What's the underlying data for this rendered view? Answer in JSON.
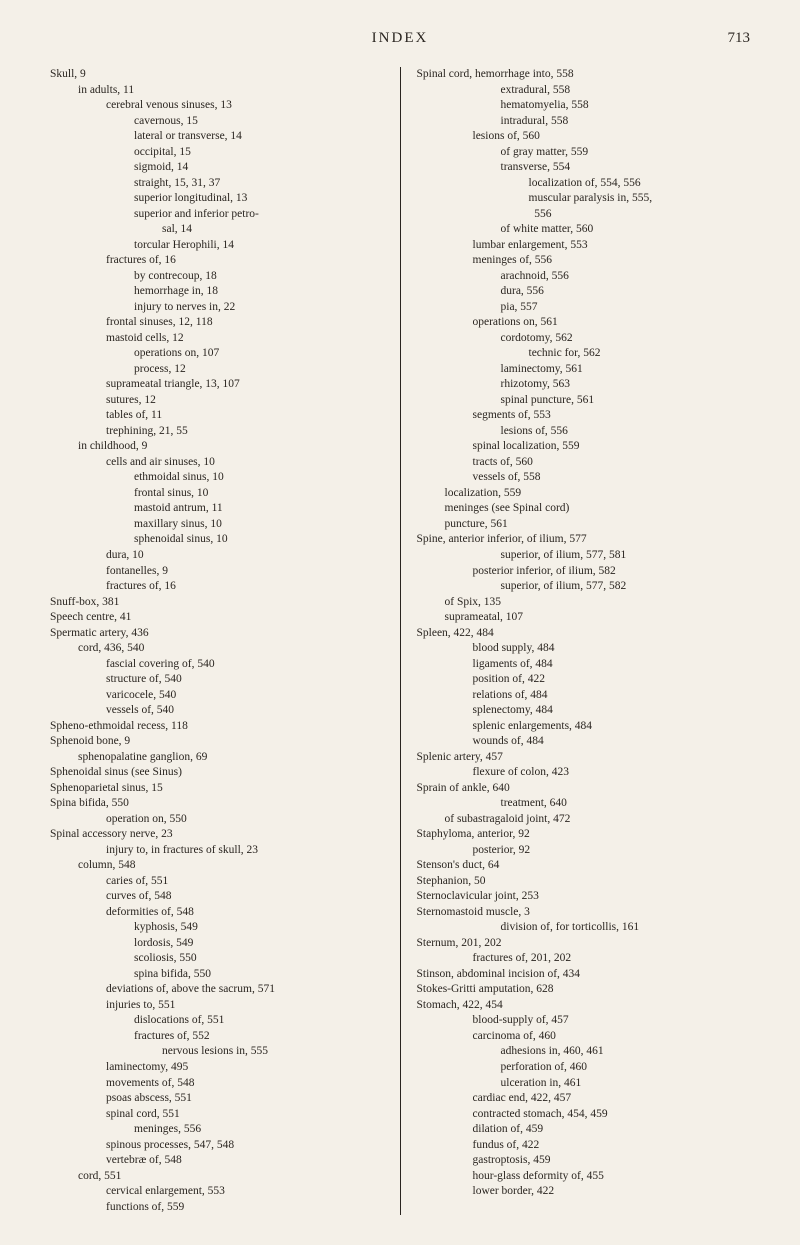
{
  "header": {
    "title": "INDEX",
    "page": "713"
  },
  "left_column": [
    {
      "i": 0,
      "t": "Skull, 9"
    },
    {
      "i": 1,
      "t": "in adults, 11"
    },
    {
      "i": 2,
      "t": "cerebral venous sinuses, 13"
    },
    {
      "i": 3,
      "t": "cavernous, 15"
    },
    {
      "i": 3,
      "t": "lateral or transverse, 14"
    },
    {
      "i": 3,
      "t": "occipital, 15"
    },
    {
      "i": 3,
      "t": "sigmoid, 14"
    },
    {
      "i": 3,
      "t": "straight, 15, 31, 37"
    },
    {
      "i": 3,
      "t": "superior longitudinal, 13"
    },
    {
      "i": 3,
      "t": "superior and inferior petro-"
    },
    {
      "i": 4,
      "t": "sal, 14"
    },
    {
      "i": 3,
      "t": "torcular Herophili, 14"
    },
    {
      "i": 2,
      "t": "fractures of, 16"
    },
    {
      "i": 3,
      "t": "by contrecoup, 18"
    },
    {
      "i": 3,
      "t": "hemorrhage in, 18"
    },
    {
      "i": 3,
      "t": "injury to nerves in, 22"
    },
    {
      "i": 2,
      "t": "frontal sinuses, 12, 118"
    },
    {
      "i": 2,
      "t": "mastoid cells, 12"
    },
    {
      "i": 3,
      "t": "operations on, 107"
    },
    {
      "i": 3,
      "t": "process, 12"
    },
    {
      "i": 2,
      "t": "suprameatal triangle, 13, 107"
    },
    {
      "i": 2,
      "t": "sutures, 12"
    },
    {
      "i": 2,
      "t": "tables of, 11"
    },
    {
      "i": 2,
      "t": "trephining, 21, 55"
    },
    {
      "i": 1,
      "t": "in childhood, 9"
    },
    {
      "i": 2,
      "t": "cells and air sinuses, 10"
    },
    {
      "i": 3,
      "t": "ethmoidal sinus, 10"
    },
    {
      "i": 3,
      "t": "frontal sinus, 10"
    },
    {
      "i": 3,
      "t": "mastoid antrum, 11"
    },
    {
      "i": 3,
      "t": "maxillary sinus, 10"
    },
    {
      "i": 3,
      "t": "sphenoidal sinus, 10"
    },
    {
      "i": 2,
      "t": "dura, 10"
    },
    {
      "i": 2,
      "t": "fontanelles, 9"
    },
    {
      "i": 2,
      "t": "fractures of, 16"
    },
    {
      "i": 0,
      "t": "Snuff-box, 381"
    },
    {
      "i": 0,
      "t": "Speech centre, 41"
    },
    {
      "i": 0,
      "t": "Spermatic artery, 436"
    },
    {
      "i": 1,
      "t": "cord, 436, 540"
    },
    {
      "i": 2,
      "t": "fascial covering of, 540"
    },
    {
      "i": 2,
      "t": "structure of, 540"
    },
    {
      "i": 2,
      "t": "varicocele, 540"
    },
    {
      "i": 2,
      "t": "vessels of, 540"
    },
    {
      "i": 0,
      "t": "Spheno-ethmoidal recess, 118"
    },
    {
      "i": 0,
      "t": "Sphenoid bone, 9"
    },
    {
      "i": 1,
      "t": "sphenopalatine ganglion, 69"
    },
    {
      "i": 0,
      "t": "Sphenoidal sinus (see Sinus)"
    },
    {
      "i": 0,
      "t": "Sphenoparietal sinus, 15"
    },
    {
      "i": 0,
      "t": "Spina bifida, 550"
    },
    {
      "i": 2,
      "t": "operation on, 550"
    },
    {
      "i": 0,
      "t": "Spinal accessory nerve, 23"
    },
    {
      "i": 2,
      "t": "injury to, in fractures of skull, 23"
    },
    {
      "i": 1,
      "t": "column, 548"
    },
    {
      "i": 2,
      "t": "caries of, 551"
    },
    {
      "i": 2,
      "t": "curves of, 548"
    },
    {
      "i": 2,
      "t": "deformities of, 548"
    },
    {
      "i": 3,
      "t": "kyphosis, 549"
    },
    {
      "i": 3,
      "t": "lordosis, 549"
    },
    {
      "i": 3,
      "t": "scoliosis, 550"
    },
    {
      "i": 3,
      "t": "spina bifida, 550"
    },
    {
      "i": 2,
      "t": "deviations of, above the sacrum, 571"
    },
    {
      "i": 2,
      "t": "injuries to, 551"
    },
    {
      "i": 3,
      "t": "dislocations of, 551"
    },
    {
      "i": 3,
      "t": "fractures of, 552"
    },
    {
      "i": 4,
      "t": "nervous lesions in, 555"
    },
    {
      "i": 2,
      "t": "laminectomy, 495"
    },
    {
      "i": 2,
      "t": "movements of, 548"
    },
    {
      "i": 2,
      "t": "psoas abscess, 551"
    },
    {
      "i": 2,
      "t": "spinal cord, 551"
    },
    {
      "i": 3,
      "t": "meninges, 556"
    },
    {
      "i": 2,
      "t": "spinous processes, 547, 548"
    },
    {
      "i": 2,
      "t": "vertebræ of, 548"
    },
    {
      "i": 1,
      "t": "cord, 551"
    },
    {
      "i": 2,
      "t": "cervical enlargement, 553"
    },
    {
      "i": 2,
      "t": "functions of, 559"
    }
  ],
  "right_column": [
    {
      "i": 0,
      "t": "Spinal cord, hemorrhage into, 558"
    },
    {
      "i": 3,
      "t": "extradural, 558"
    },
    {
      "i": 3,
      "t": "hematomyelia, 558"
    },
    {
      "i": 3,
      "t": "intradural, 558"
    },
    {
      "i": 2,
      "t": "lesions of, 560"
    },
    {
      "i": 3,
      "t": "of gray matter, 559"
    },
    {
      "i": 3,
      "t": "transverse, 554"
    },
    {
      "i": 4,
      "t": "localization of, 554, 556"
    },
    {
      "i": 4,
      "t": "muscular paralysis in, 555,"
    },
    {
      "i": 4,
      "t": "  556"
    },
    {
      "i": 3,
      "t": "of white matter, 560"
    },
    {
      "i": 2,
      "t": "lumbar enlargement, 553"
    },
    {
      "i": 2,
      "t": "meninges of, 556"
    },
    {
      "i": 3,
      "t": "arachnoid, 556"
    },
    {
      "i": 3,
      "t": "dura, 556"
    },
    {
      "i": 3,
      "t": "pia, 557"
    },
    {
      "i": 2,
      "t": "operations on, 561"
    },
    {
      "i": 3,
      "t": "cordotomy, 562"
    },
    {
      "i": 4,
      "t": "technic for, 562"
    },
    {
      "i": 3,
      "t": "laminectomy, 561"
    },
    {
      "i": 3,
      "t": "rhizotomy, 563"
    },
    {
      "i": 3,
      "t": "spinal puncture, 561"
    },
    {
      "i": 2,
      "t": "segments of, 553"
    },
    {
      "i": 3,
      "t": "lesions of, 556"
    },
    {
      "i": 2,
      "t": "spinal localization, 559"
    },
    {
      "i": 2,
      "t": "tracts of, 560"
    },
    {
      "i": 2,
      "t": "vessels of, 558"
    },
    {
      "i": 1,
      "t": "localization, 559"
    },
    {
      "i": 1,
      "t": "meninges (see Spinal cord)"
    },
    {
      "i": 1,
      "t": "puncture, 561"
    },
    {
      "i": 0,
      "t": "Spine, anterior inferior, of ilium, 577"
    },
    {
      "i": 3,
      "t": "superior, of ilium, 577, 581"
    },
    {
      "i": 2,
      "t": "posterior inferior, of ilium, 582"
    },
    {
      "i": 3,
      "t": "superior, of ilium, 577, 582"
    },
    {
      "i": 1,
      "t": "of Spix, 135"
    },
    {
      "i": 1,
      "t": "suprameatal, 107"
    },
    {
      "i": 0,
      "t": "Spleen, 422, 484"
    },
    {
      "i": 2,
      "t": "blood supply, 484"
    },
    {
      "i": 2,
      "t": "ligaments of, 484"
    },
    {
      "i": 2,
      "t": "position of, 422"
    },
    {
      "i": 2,
      "t": "relations of, 484"
    },
    {
      "i": 2,
      "t": "splenectomy, 484"
    },
    {
      "i": 2,
      "t": "splenic enlargements, 484"
    },
    {
      "i": 2,
      "t": "wounds of, 484"
    },
    {
      "i": 0,
      "t": "Splenic artery, 457"
    },
    {
      "i": 2,
      "t": "flexure of colon, 423"
    },
    {
      "i": 0,
      "t": "Sprain of ankle, 640"
    },
    {
      "i": 3,
      "t": "treatment, 640"
    },
    {
      "i": 1,
      "t": "of subastragaloid joint, 472"
    },
    {
      "i": 0,
      "t": "Staphyloma, anterior, 92"
    },
    {
      "i": 2,
      "t": "posterior, 92"
    },
    {
      "i": 0,
      "t": "Stenson's duct, 64"
    },
    {
      "i": 0,
      "t": "Stephanion, 50"
    },
    {
      "i": 0,
      "t": "Sternoclavicular joint, 253"
    },
    {
      "i": 0,
      "t": "Sternomastoid muscle, 3"
    },
    {
      "i": 3,
      "t": "division of, for torticollis, 161"
    },
    {
      "i": 0,
      "t": "Sternum, 201, 202"
    },
    {
      "i": 2,
      "t": "fractures of, 201, 202"
    },
    {
      "i": 0,
      "t": "Stinson, abdominal incision of, 434"
    },
    {
      "i": 0,
      "t": "Stokes-Gritti amputation, 628"
    },
    {
      "i": 0,
      "t": "Stomach, 422, 454"
    },
    {
      "i": 2,
      "t": "blood-supply of, 457"
    },
    {
      "i": 2,
      "t": "carcinoma of, 460"
    },
    {
      "i": 3,
      "t": "adhesions in, 460, 461"
    },
    {
      "i": 3,
      "t": "perforation of, 460"
    },
    {
      "i": 3,
      "t": "ulceration in, 461"
    },
    {
      "i": 2,
      "t": "cardiac end, 422, 457"
    },
    {
      "i": 2,
      "t": "contracted stomach, 454, 459"
    },
    {
      "i": 2,
      "t": "dilation of, 459"
    },
    {
      "i": 2,
      "t": "fundus of, 422"
    },
    {
      "i": 2,
      "t": "gastroptosis, 459"
    },
    {
      "i": 2,
      "t": "hour-glass deformity of, 455"
    },
    {
      "i": 2,
      "t": "lower border, 422"
    }
  ]
}
